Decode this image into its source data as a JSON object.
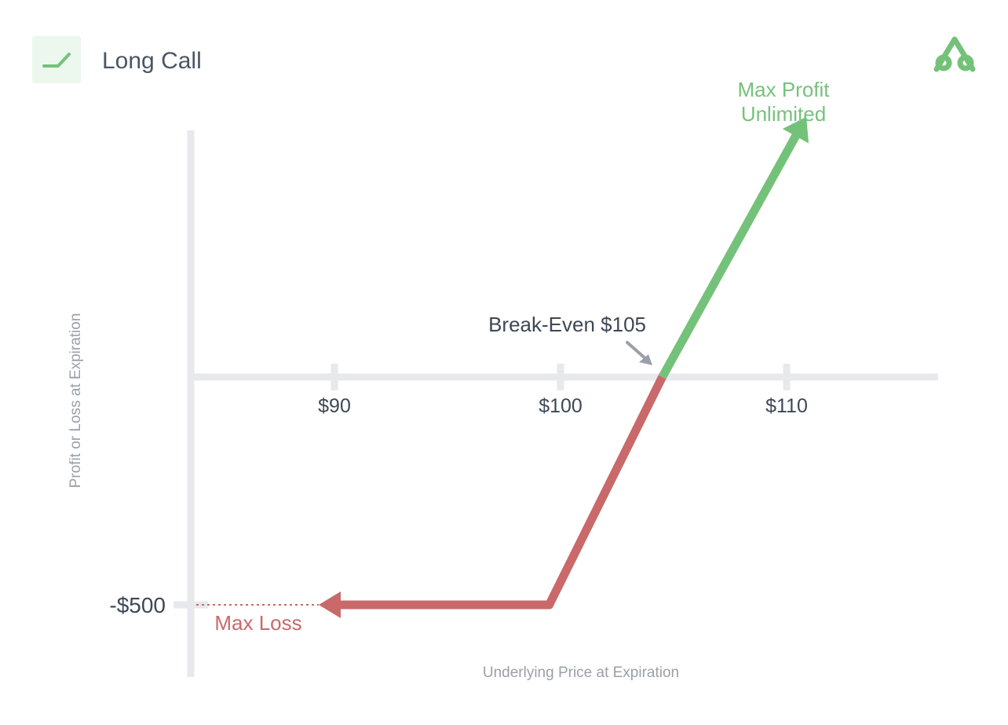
{
  "header": {
    "title": "Long Call",
    "strategy_icon": "long-call-payoff-icon",
    "brand_logo": "tastytrade-logo-icon"
  },
  "colors": {
    "profit": "#74c27a",
    "loss": "#c9696a",
    "axis": "#e8e9ec",
    "text": "#3d4756",
    "muted": "#9aa0a8",
    "icon_bg": "#ecf7ee"
  },
  "chart_data": {
    "type": "line",
    "title": "",
    "xlabel": "Underlying Price at Expiration",
    "ylabel": "Profit or Loss at Expiration",
    "x_ticks": [
      {
        "value": 90,
        "label": "$90"
      },
      {
        "value": 100,
        "label": "$100"
      },
      {
        "value": 110,
        "label": "$110"
      }
    ],
    "y_ticks": [
      {
        "value": -500,
        "label": "-$500"
      }
    ],
    "xlim": [
      81,
      117
    ],
    "ylim": [
      -900,
      1050
    ],
    "series": [
      {
        "role": "loss",
        "points": [
          [
            90,
            -500
          ],
          [
            99.5,
            -500
          ],
          [
            104.5,
            0
          ]
        ]
      },
      {
        "role": "profit",
        "points": [
          [
            104.5,
            0
          ],
          [
            110.5,
            1000
          ]
        ]
      }
    ],
    "annotations": {
      "break_even": "Break-Even $105",
      "max_profit_line1": "Max Profit",
      "max_profit_line2": "Unlimited",
      "max_loss": "Max Loss"
    }
  }
}
